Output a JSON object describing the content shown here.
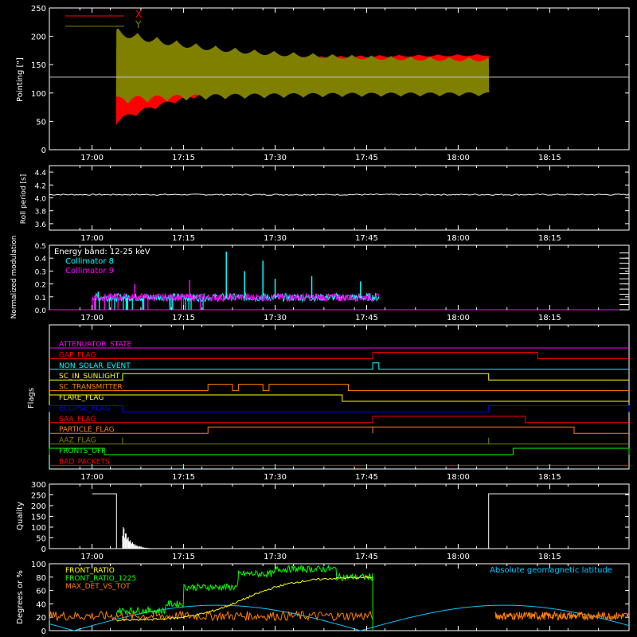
{
  "x_time_labels": [
    "17:00",
    "17:15",
    "17:30",
    "17:45",
    "18:00",
    "18:15"
  ],
  "colors": {
    "background": "#000000",
    "axes": "#ffffff",
    "red": "#ff0000",
    "olive": "#808000",
    "cyan": "#00ffff",
    "magenta": "#ff00ff",
    "green": "#00ff00",
    "yellow": "#ffff00",
    "orange": "#ff8000",
    "blue": "#0000ff",
    "sky": "#00c8ff",
    "gray": "#c8c8c8"
  },
  "chart_data": [
    {
      "id": "pointing",
      "type": "line",
      "ylabel": "Pointing [\"]",
      "ylim": [
        0,
        250
      ],
      "yticks": [
        0,
        50,
        100,
        150,
        200,
        250
      ],
      "x_range": [
        "16:53",
        "18:28"
      ],
      "legend": [
        {
          "name": "X",
          "color": "#ff0000"
        },
        {
          "name": "Y",
          "color": "#808000"
        }
      ],
      "legend_position": "top-left",
      "reference_level": 128,
      "data_start": "17:04",
      "data_end": "18:05",
      "series": [
        {
          "name": "X",
          "color": "#ff0000",
          "envelope_start": [
            45,
            140
          ],
          "envelope_end": [
            138,
            170
          ]
        },
        {
          "name": "Y",
          "color": "#808000",
          "envelope_start": [
            80,
            215
          ],
          "envelope_end": [
            95,
            160
          ]
        }
      ]
    },
    {
      "id": "roll_period",
      "type": "line",
      "ylabel": "Roll period [s]",
      "ylim": [
        3.5,
        4.5
      ],
      "yticks": [
        3.6,
        3.8,
        4.0,
        4.2,
        4.4
      ],
      "ytick_labels": [
        "3.6",
        "3.8",
        "4.0",
        "4.2",
        "4.4"
      ],
      "series": [
        {
          "name": "",
          "color": "#ffffff",
          "value": 4.05
        }
      ]
    },
    {
      "id": "modulation",
      "type": "line",
      "ylabel": "Normalized modulation",
      "ylim": [
        0,
        0.5
      ],
      "yticks": [
        0,
        0.1,
        0.2,
        0.3,
        0.4,
        0.5
      ],
      "ytick_labels": [
        "0.0",
        "0.1",
        "0.2",
        "0.3",
        "0.4",
        "0.5"
      ],
      "annotation": "Energy band: 12-25 keV",
      "legend": [
        {
          "name": "Collimator 8",
          "color": "#00ffff"
        },
        {
          "name": "Collimator 9",
          "color": "#ff00ff"
        }
      ],
      "data_range": [
        "17:00",
        "17:47"
      ],
      "baseline": 0.09,
      "spikes": [
        {
          "t": "17:22",
          "v": 0.45,
          "color": "#00ffff"
        },
        {
          "t": "17:25",
          "v": 0.3,
          "color": "#00ffff"
        },
        {
          "t": "17:28",
          "v": 0.38,
          "color": "#00ffff"
        },
        {
          "t": "17:30",
          "v": 0.24,
          "color": "#00ffff"
        },
        {
          "t": "17:36",
          "v": 0.26,
          "color": "#00ffff"
        },
        {
          "t": "17:44",
          "v": 0.22,
          "color": "#00ffff"
        },
        {
          "t": "17:16",
          "v": 0.23,
          "color": "#ff00ff"
        },
        {
          "t": "17:07",
          "v": 0.2,
          "color": "#ff00ff"
        },
        {
          "t": "17:01",
          "v": 0.14,
          "color": "#00ffff"
        }
      ]
    },
    {
      "id": "flags",
      "type": "line",
      "ylabel": "Flags",
      "flags": [
        {
          "name": "ATTENUATOR_STATE",
          "color": "#ff00ff",
          "high": []
        },
        {
          "name": "GAP_FLAG",
          "color": "#ff0000",
          "high": [
            [
              "17:46",
              "18:13"
            ]
          ]
        },
        {
          "name": "NON_SOLAR_EVENT",
          "color": "#00ffff",
          "high": [
            [
              "17:46",
              "17:47"
            ]
          ]
        },
        {
          "name": "SC_IN_SUNLIGHT",
          "color": "#ffff00",
          "high": [
            [
              "17:05",
              "18:05"
            ]
          ]
        },
        {
          "name": "SC_TRANSMITTER",
          "color": "#ff8000",
          "high": [
            [
              "17:19",
              "17:23"
            ],
            [
              "17:24",
              "17:28"
            ],
            [
              "17:29",
              "17:42"
            ]
          ]
        },
        {
          "name": "FLARE_FLAG",
          "color": "#ffff00",
          "high": [
            [
              "16:53",
              "17:41"
            ]
          ]
        },
        {
          "name": "ECLIPSE_FLAG",
          "color": "#0000ff",
          "high": [
            [
              "16:53",
              "17:05"
            ],
            [
              "18:05",
              "18:28"
            ]
          ]
        },
        {
          "name": "SAA_FLAG",
          "color": "#ff0000",
          "high": [
            [
              "17:46",
              "18:11"
            ]
          ]
        },
        {
          "name": "PARTICLE_FLAG",
          "color": "#ff8000",
          "high": [
            [
              "17:19",
              "17:46"
            ],
            [
              "17:46",
              "18:19"
            ]
          ]
        },
        {
          "name": "AAZ_FLAG",
          "color": "#808000",
          "high": [
            [
              "17:05",
              "17:05"
            ],
            [
              "18:05",
              "18:05"
            ]
          ]
        },
        {
          "name": "FRONTS_OFF",
          "color": "#00ff00",
          "high": [
            [
              "16:53",
              "17:02"
            ],
            [
              "18:09",
              "18:28"
            ]
          ]
        },
        {
          "name": "BAD_PACKETS",
          "color": "#ff0000",
          "high": []
        }
      ]
    },
    {
      "id": "quality",
      "type": "line",
      "ylabel": "Quality",
      "ylim": [
        0,
        300
      ],
      "yticks": [
        0,
        50,
        100,
        150,
        200,
        250,
        300
      ],
      "series": [
        {
          "name": "",
          "color": "#ffffff",
          "segments": [
            [
              [
                "17:00",
                255
              ],
              [
                "17:04",
                255
              ],
              [
                "17:04",
                0
              ]
            ],
            [
              [
                "18:05",
                0
              ],
              [
                "18:05",
                255
              ],
              [
                "18:28",
                255
              ]
            ]
          ],
          "decay_start": "17:05",
          "decay_end": "17:12"
        }
      ]
    },
    {
      "id": "geomagnetic",
      "type": "line",
      "ylabel": "Degrees or %",
      "ylim": [
        0,
        100
      ],
      "yticks": [
        0,
        20,
        40,
        60,
        80,
        100
      ],
      "legend": [
        {
          "name": "FRONT_RATIO",
          "color": "#ffff00"
        },
        {
          "name": "FRONT_RATIO_1225",
          "color": "#00ff00"
        },
        {
          "name": "MAX_DET_VS_TOT",
          "color": "#ff8000"
        }
      ],
      "annotation": "Absolute geomagnetic latitude",
      "annotation_color": "#00c8ff"
    }
  ]
}
